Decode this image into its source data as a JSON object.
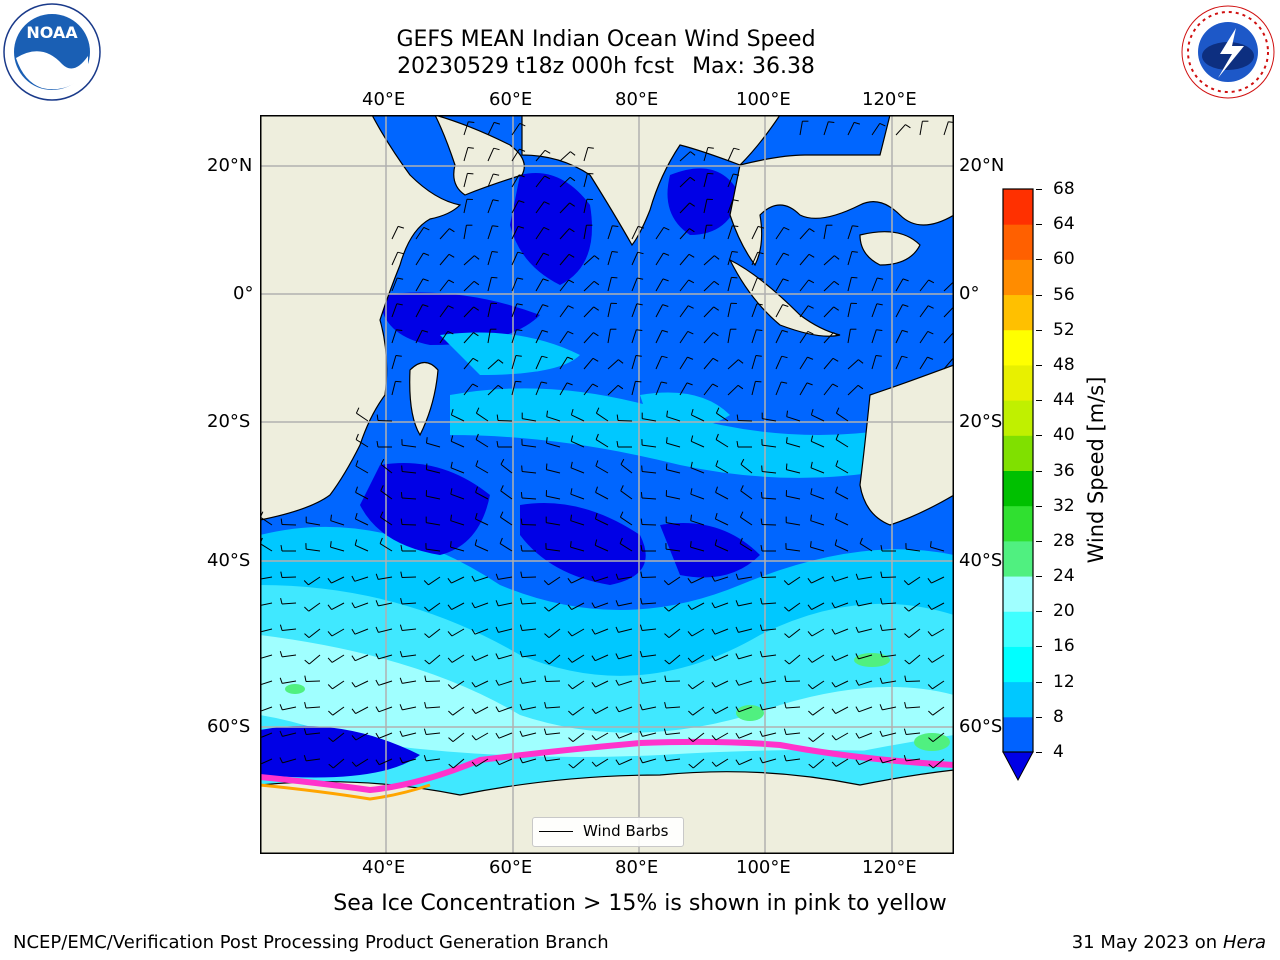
{
  "title": {
    "line1": "GEFS MEAN Indian Ocean Wind Speed",
    "run": "20230529 t18z 000h fcst",
    "max": "Max: 36.38"
  },
  "map": {
    "lon_ticks": [
      "40°E",
      "60°E",
      "80°E",
      "100°E",
      "120°E"
    ],
    "lat_ticks": [
      "20°N",
      "0°",
      "20°S",
      "40°S",
      "60°S"
    ],
    "lon_range": [
      20,
      130
    ],
    "lat_range": [
      -74,
      27
    ],
    "legend_label": "Wind Barbs",
    "colors": {
      "land": "#eeeedd",
      "ocean_deep": "#0000e6",
      "ocean_mid": "#0066ff",
      "ocean_light": "#00ccff",
      "ice": "#ff33cc"
    }
  },
  "colorbar": {
    "label": "Wind Speed [m/s]",
    "levels": [
      "4",
      "8",
      "12",
      "16",
      "20",
      "24",
      "28",
      "32",
      "36",
      "40",
      "44",
      "48",
      "52",
      "56",
      "60",
      "64",
      "68"
    ],
    "colors": [
      "#0062ff",
      "#00c8ff",
      "#00ffff",
      "#40ffff",
      "#a0ffff",
      "#50f080",
      "#30e030",
      "#00c000",
      "#80e000",
      "#c0f000",
      "#e8f000",
      "#ffff00",
      "#ffc000",
      "#ff8c00",
      "#ff6000",
      "#ff3000",
      "#ff0000"
    ]
  },
  "logos": {
    "left": "NOAA",
    "right": "NATIONAL WEATHER SERVICE"
  },
  "ice_note": "Sea Ice Concentration > 15% is shown in pink to yellow",
  "footer": {
    "left": "NCEP/EMC/Verification Post Processing Product Generation Branch",
    "date": "31 May 2023 on",
    "machine": "Hera"
  }
}
